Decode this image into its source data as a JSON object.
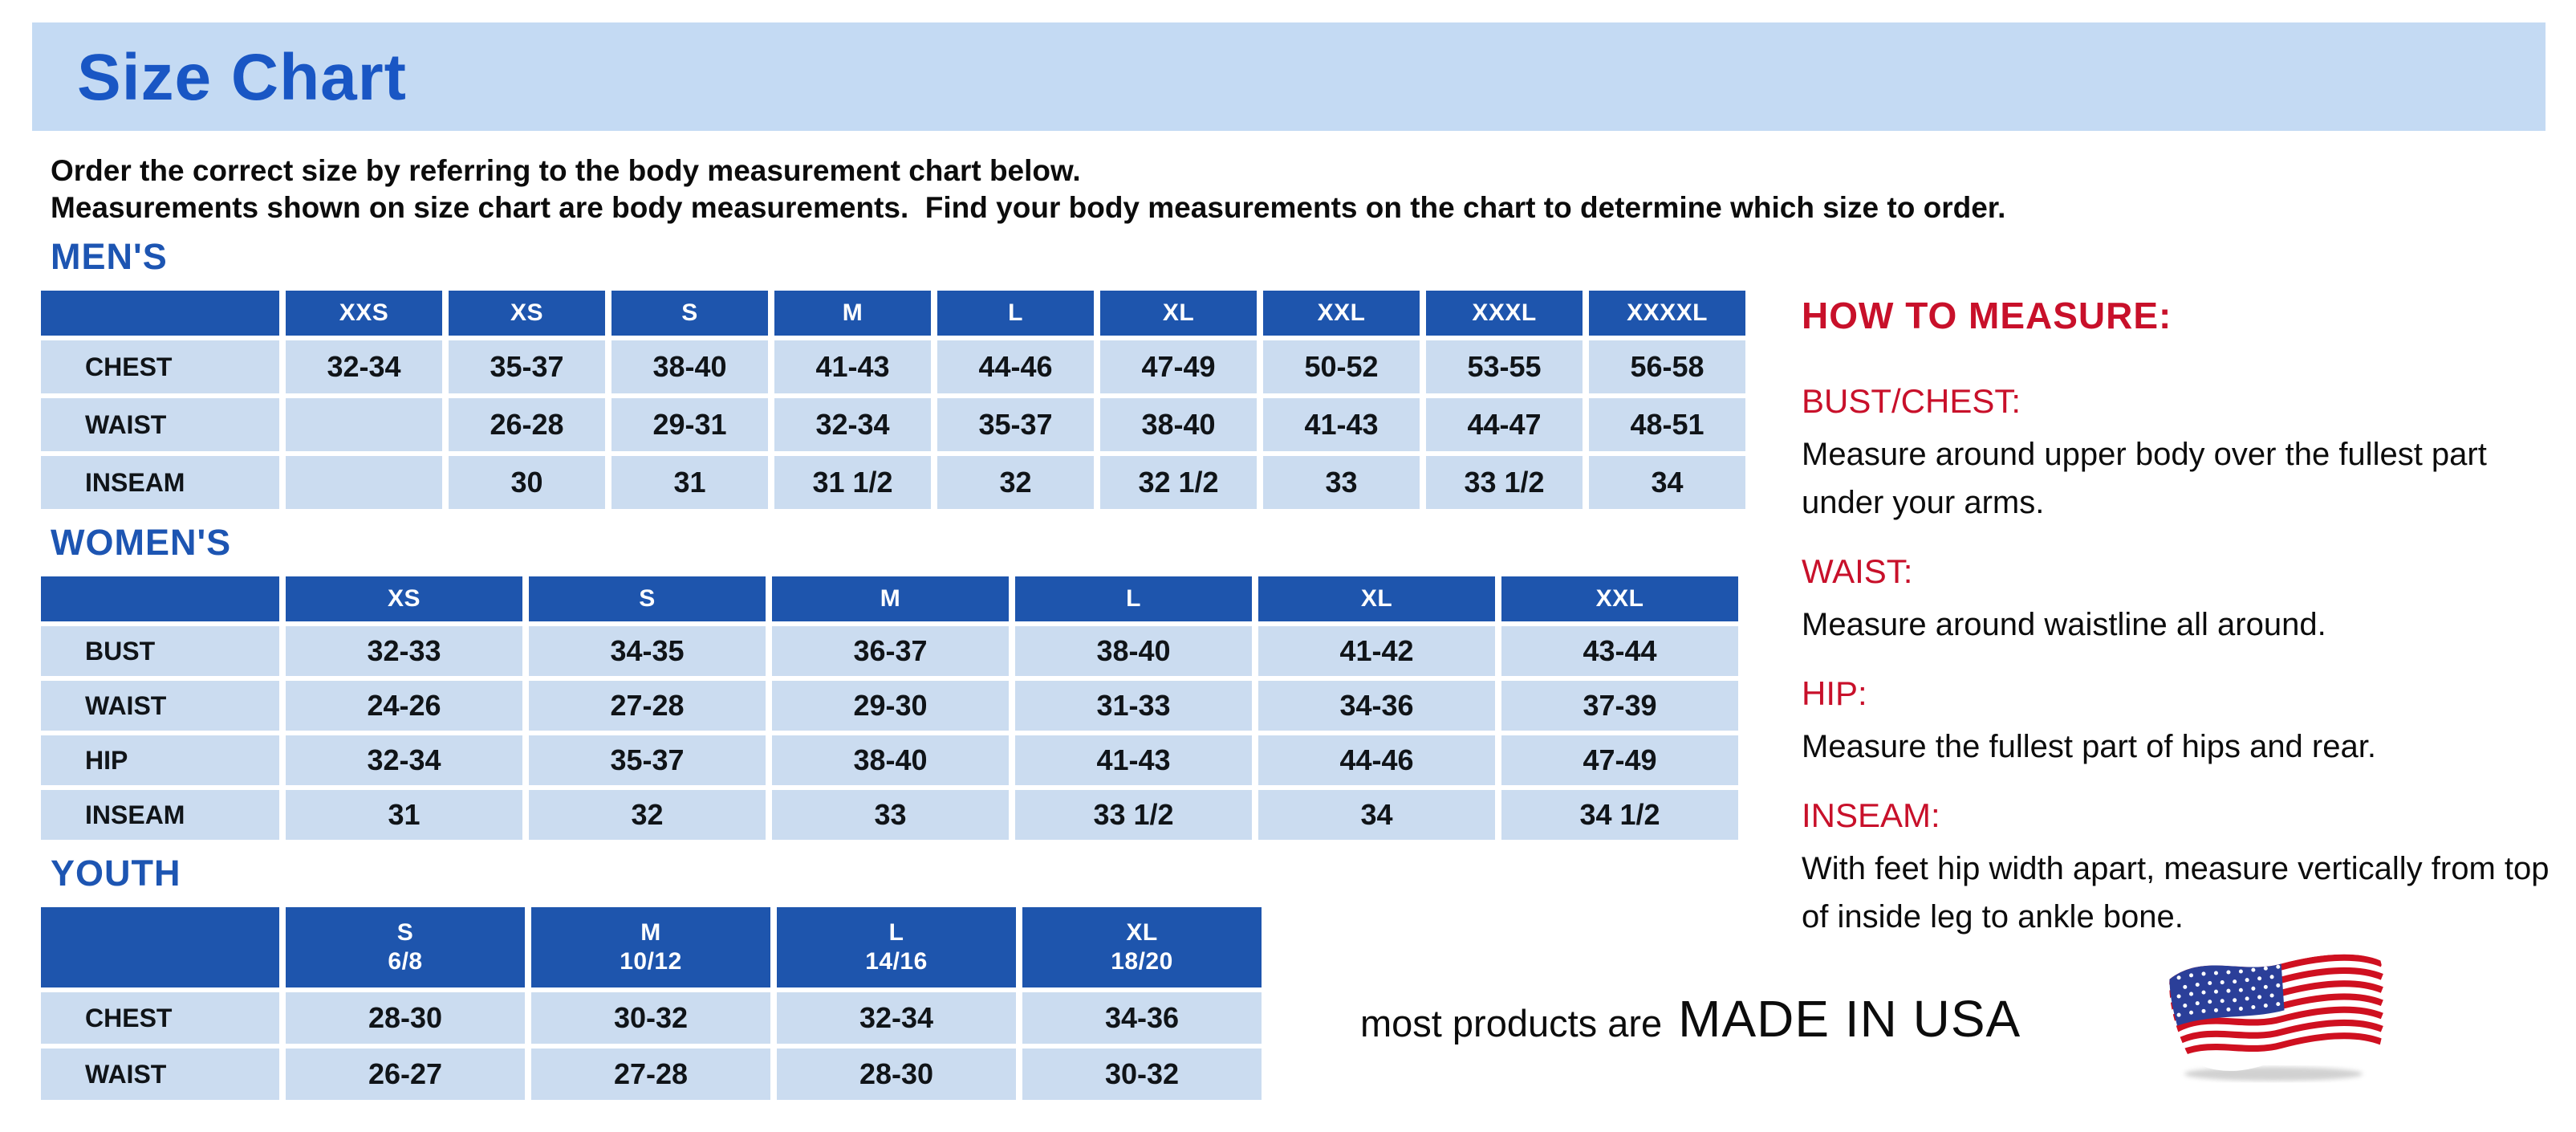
{
  "page": {
    "title": "Size Chart",
    "intro": {
      "line1": "Order the correct size by referring to the body measurement chart below.",
      "line2": "Measurements shown on size chart are body measurements.  Find your body measurements on the chart to determine which size to order."
    }
  },
  "colors": {
    "title_blue": "#1956c4",
    "section_blue": "#1d55b2",
    "header_blue": "#1e55ad",
    "cell_blue": "#cbdcf0",
    "banner_blue": "#c4daf3",
    "accent_red": "#c8102a",
    "text_dark": "#101418"
  },
  "tables": [
    {
      "id": "mens",
      "section": "MEN'S",
      "columns": [
        "XXS",
        "XS",
        "S",
        "M",
        "L",
        "XL",
        "XXL",
        "XXXL",
        "XXXXL"
      ],
      "rows": [
        {
          "label": "CHEST",
          "values": [
            "32-34",
            "35-37",
            "38-40",
            "41-43",
            "44-46",
            "47-49",
            "50-52",
            "53-55",
            "56-58"
          ]
        },
        {
          "label": "WAIST",
          "values": [
            "",
            "26-28",
            "29-31",
            "32-34",
            "35-37",
            "38-40",
            "41-43",
            "44-47",
            "48-51"
          ]
        },
        {
          "label": "INSEAM",
          "values": [
            "",
            "30",
            "31",
            "31 1/2",
            "32",
            "32 1/2",
            "33",
            "33 1/2",
            "34"
          ]
        }
      ]
    },
    {
      "id": "womens",
      "section": "WOMEN'S",
      "columns": [
        "XS",
        "S",
        "M",
        "L",
        "XL",
        "XXL"
      ],
      "rows": [
        {
          "label": "BUST",
          "values": [
            "32-33",
            "34-35",
            "36-37",
            "38-40",
            "41-42",
            "43-44"
          ]
        },
        {
          "label": "WAIST",
          "values": [
            "24-26",
            "27-28",
            "29-30",
            "31-33",
            "34-36",
            "37-39"
          ]
        },
        {
          "label": "HIP",
          "values": [
            "32-34",
            "35-37",
            "38-40",
            "41-43",
            "44-46",
            "47-49"
          ]
        },
        {
          "label": "INSEAM",
          "values": [
            "31",
            "32",
            "33",
            "33 1/2",
            "34",
            "34 1/2"
          ]
        }
      ]
    },
    {
      "id": "youth",
      "section": "YOUTH",
      "columns": [
        "S\n6/8",
        "M\n10/12",
        "L\n14/16",
        "XL\n18/20"
      ],
      "rows": [
        {
          "label": "CHEST",
          "values": [
            "28-30",
            "30-32",
            "32-34",
            "34-36"
          ]
        },
        {
          "label": "WAIST",
          "values": [
            "26-27",
            "27-28",
            "28-30",
            "30-32"
          ]
        }
      ]
    }
  ],
  "how_to_measure": {
    "title": "HOW TO MEASURE:",
    "items": [
      {
        "heading": "BUST/CHEST:",
        "text": "Measure around upper body over the fullest part under your arms."
      },
      {
        "heading": "WAIST:",
        "text": "Measure around waistline all around."
      },
      {
        "heading": "HIP:",
        "text": "Measure the fullest part of hips and rear."
      },
      {
        "heading": "INSEAM:",
        "text": "With feet hip width apart, measure vertically from top of inside leg to ankle bone."
      }
    ]
  },
  "footer": {
    "prefix": "most products are",
    "made_in": "MADE IN USA",
    "flag_icon": "us-flag-icon"
  }
}
